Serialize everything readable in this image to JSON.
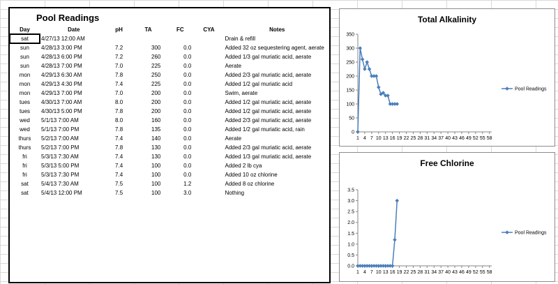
{
  "panel": {
    "title": "Pool Readings",
    "headers": [
      "Day",
      "Date",
      "pH",
      "TA",
      "FC",
      "CYA",
      "Notes"
    ],
    "rows": [
      {
        "day": "sat",
        "date": "4/27/13 12:00 AM",
        "ph": "",
        "ta": "",
        "fc": "",
        "cya": "",
        "notes": "Drain & refill"
      },
      {
        "day": "sun",
        "date": "4/28/13 3:00 PM",
        "ph": "7.2",
        "ta": "300",
        "fc": "0.0",
        "cya": "",
        "notes": "Added 32 oz sequestering agent, aerate"
      },
      {
        "day": "sun",
        "date": "4/28/13 6:00 PM",
        "ph": "7.2",
        "ta": "260",
        "fc": "0.0",
        "cya": "",
        "notes": "Added 1/3 gal muriatic acid, aerate"
      },
      {
        "day": "sun",
        "date": "4/28/13 7:00 PM",
        "ph": "7.0",
        "ta": "225",
        "fc": "0.0",
        "cya": "",
        "notes": "Aerate"
      },
      {
        "day": "mon",
        "date": "4/29/13 6:30 AM",
        "ph": "7.8",
        "ta": "250",
        "fc": "0.0",
        "cya": "",
        "notes": "Added 2/3 gal muriatic acid, aerate"
      },
      {
        "day": "mon",
        "date": "4/29/13 4:30 PM",
        "ph": "7.4",
        "ta": "225",
        "fc": "0.0",
        "cya": "",
        "notes": "Added 1/2 gal muriatic acid"
      },
      {
        "day": "mon",
        "date": "4/29/13 7:00 PM",
        "ph": "7.0",
        "ta": "200",
        "fc": "0.0",
        "cya": "",
        "notes": "Swim, aerate"
      },
      {
        "day": "tues",
        "date": "4/30/13 7:00 AM",
        "ph": "8.0",
        "ta": "200",
        "fc": "0.0",
        "cya": "",
        "notes": "Added 1/2 gal muriatic acid, aerate"
      },
      {
        "day": "tues",
        "date": "4/30/13 5:00 PM",
        "ph": "7.8",
        "ta": "200",
        "fc": "0.0",
        "cya": "",
        "notes": "Added 1/2 gal muriatic acid, aerate"
      },
      {
        "day": "wed",
        "date": "5/1/13 7:00 AM",
        "ph": "8.0",
        "ta": "160",
        "fc": "0.0",
        "cya": "",
        "notes": "Added 2/3 gal muriatic acid, aerate"
      },
      {
        "day": "wed",
        "date": "5/1/13 7:00 PM",
        "ph": "7.8",
        "ta": "135",
        "fc": "0.0",
        "cya": "",
        "notes": "Added 1/2 gal muriatic acid, rain"
      },
      {
        "day": "thurs",
        "date": "5/2/13 7:00 AM",
        "ph": "7.4",
        "ta": "140",
        "fc": "0.0",
        "cya": "",
        "notes": "Aerate"
      },
      {
        "day": "thurs",
        "date": "5/2/13 7:00 PM",
        "ph": "7.8",
        "ta": "130",
        "fc": "0.0",
        "cya": "",
        "notes": "Added 2/3 gal muriatic acid, aerate"
      },
      {
        "day": "fri",
        "date": "5/3/13 7:30 AM",
        "ph": "7.4",
        "ta": "130",
        "fc": "0.0",
        "cya": "",
        "notes": "Added 1/3 gal muriatic acid, aerate"
      },
      {
        "day": "fri",
        "date": "5/3/13 5:00 PM",
        "ph": "7.4",
        "ta": "100",
        "fc": "0.0",
        "cya": "",
        "notes": "Added 2 lb cya"
      },
      {
        "day": "fri",
        "date": "5/3/13 7:30 PM",
        "ph": "7.4",
        "ta": "100",
        "fc": "0.0",
        "cya": "",
        "notes": "Added 10 oz chlorine"
      },
      {
        "day": "sat",
        "date": "5/4/13 7:30 AM",
        "ph": "7.5",
        "ta": "100",
        "fc": "1.2",
        "cya": "",
        "notes": "Added 8 oz chlorine"
      },
      {
        "day": "sat",
        "date": "5/4/13 12:00 PM",
        "ph": "7.5",
        "ta": "100",
        "fc": "3.0",
        "cya": "",
        "notes": "Nothing"
      }
    ],
    "empty_rows": 6
  },
  "chart_data": [
    {
      "type": "line",
      "title": "Total Alkalinity",
      "x_ticks": [
        "1",
        "4",
        "7",
        "10",
        "13",
        "16",
        "19",
        "22",
        "25",
        "28",
        "31",
        "34",
        "37",
        "40",
        "43",
        "46",
        "49",
        "52",
        "55",
        "58"
      ],
      "y_ticks": [
        "0",
        "50",
        "100",
        "150",
        "200",
        "250",
        "300",
        "350"
      ],
      "ylim": [
        0,
        350
      ],
      "xlim": [
        1,
        59
      ],
      "series": [
        {
          "name": "Pool Readings",
          "x": [
            1,
            2,
            3,
            4,
            5,
            6,
            7,
            8,
            9,
            10,
            11,
            12,
            13,
            14,
            15,
            16,
            17,
            18
          ],
          "values": [
            0,
            300,
            260,
            225,
            250,
            225,
            200,
            200,
            200,
            160,
            135,
            140,
            130,
            130,
            100,
            100,
            100,
            100
          ]
        }
      ],
      "legend": "right",
      "color": "#4a7ebb"
    },
    {
      "type": "line",
      "title": "Free Chlorine",
      "x_ticks": [
        "1",
        "4",
        "7",
        "10",
        "13",
        "16",
        "19",
        "22",
        "25",
        "28",
        "31",
        "34",
        "37",
        "40",
        "43",
        "46",
        "49",
        "52",
        "55",
        "58"
      ],
      "y_ticks": [
        "0.0",
        "0.5",
        "1.0",
        "1.5",
        "2.0",
        "2.5",
        "3.0",
        "3.5"
      ],
      "ylim": [
        0,
        3.5
      ],
      "xlim": [
        1,
        59
      ],
      "series": [
        {
          "name": "Pool Readings",
          "x": [
            1,
            2,
            3,
            4,
            5,
            6,
            7,
            8,
            9,
            10,
            11,
            12,
            13,
            14,
            15,
            16,
            17,
            18
          ],
          "values": [
            0,
            0,
            0,
            0,
            0,
            0,
            0,
            0,
            0,
            0,
            0,
            0,
            0,
            0,
            0,
            0,
            1.2,
            3.0
          ]
        }
      ],
      "legend": "right",
      "color": "#4a7ebb"
    }
  ]
}
